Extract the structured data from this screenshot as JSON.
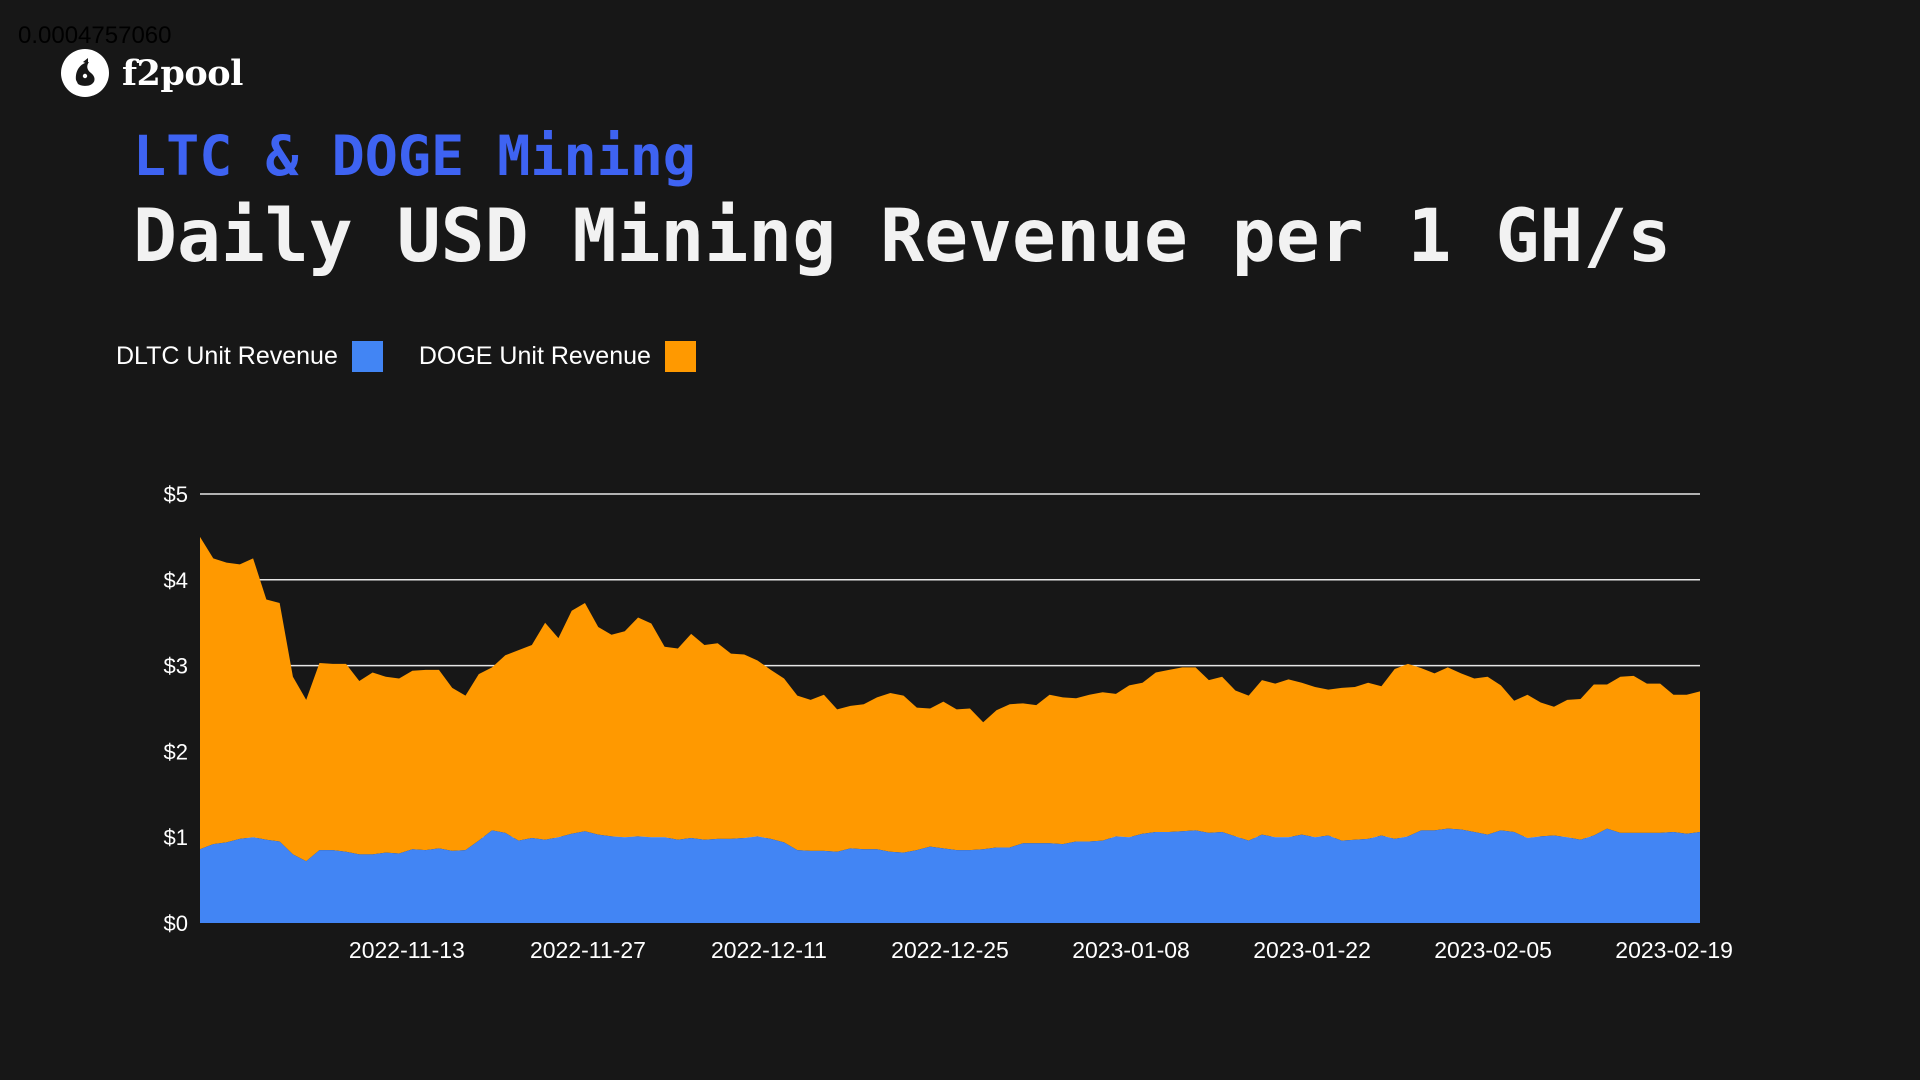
{
  "corner_value": "0.0004757060",
  "brand": {
    "name": "f2pool",
    "icon": "f2pool-fish-logo-icon"
  },
  "header": {
    "subtitle": "LTC & DOGE Mining",
    "title": "Daily USD Mining Revenue per 1 GH/s"
  },
  "colors": {
    "background": "#171717",
    "subtitle": "#3e63f2",
    "ltc": "#4285f4",
    "doge": "#ff9900",
    "grid": "#e6e6e6"
  },
  "chart_data": {
    "type": "area",
    "stacked": true,
    "x_start": "2022-10-28",
    "x_end": "2023-02-21",
    "x_ticks": [
      "2022-11-13",
      "2022-11-27",
      "2022-12-11",
      "2022-12-25",
      "2023-01-08",
      "2023-01-22",
      "2023-02-05",
      "2023-02-19"
    ],
    "y_ticks": [
      "$0",
      "$1",
      "$2",
      "$3",
      "$4",
      "$5"
    ],
    "ylim": [
      0,
      5
    ],
    "grid": "horizontal",
    "legend_position": "top-left",
    "series": [
      {
        "name": "DLTC Unit Revenue",
        "color": "#4285f4",
        "values": [
          0.86,
          0.92,
          0.94,
          0.98,
          1.0,
          0.97,
          0.95,
          0.8,
          0.72,
          0.85,
          0.85,
          0.83,
          0.8,
          0.8,
          0.82,
          0.81,
          0.86,
          0.85,
          0.87,
          0.84,
          0.85,
          0.96,
          1.08,
          1.05,
          0.96,
          0.99,
          0.97,
          1.0,
          1.04,
          1.07,
          1.03,
          1.01,
          1.0,
          1.01,
          1.0,
          1.0,
          0.97,
          0.99,
          0.97,
          0.98,
          0.98,
          0.99,
          1.01,
          0.98,
          0.94,
          0.85,
          0.84,
          0.84,
          0.83,
          0.87,
          0.86,
          0.86,
          0.83,
          0.82,
          0.85,
          0.89,
          0.87,
          0.85,
          0.85,
          0.86,
          0.88,
          0.88,
          0.93,
          0.93,
          0.93,
          0.92,
          0.95,
          0.95,
          0.96,
          1.01,
          1.0,
          1.04,
          1.06,
          1.06,
          1.07,
          1.08,
          1.05,
          1.06,
          1.01,
          0.96,
          1.03,
          1.0,
          1.0,
          1.03,
          1.0,
          1.02,
          0.96,
          0.97,
          0.98,
          1.02,
          0.98,
          1.01,
          1.08,
          1.08,
          1.1,
          1.09,
          1.06,
          1.03,
          1.08,
          1.06,
          0.99,
          1.01,
          1.02,
          1.0,
          0.97,
          1.02,
          1.1,
          1.05,
          1.05,
          1.05,
          1.05,
          1.06,
          1.04,
          1.06
        ]
      },
      {
        "name": "DOGE Unit Revenue",
        "color": "#ff9900",
        "values": [
          3.64,
          3.33,
          3.26,
          3.2,
          3.25,
          2.8,
          2.78,
          2.07,
          1.88,
          2.18,
          2.17,
          2.19,
          2.02,
          2.12,
          2.05,
          2.04,
          2.08,
          2.1,
          2.08,
          1.9,
          1.8,
          1.94,
          1.9,
          2.07,
          2.22,
          2.25,
          2.53,
          2.32,
          2.6,
          2.66,
          2.42,
          2.35,
          2.4,
          2.55,
          2.49,
          2.22,
          2.23,
          2.38,
          2.27,
          2.28,
          2.16,
          2.14,
          2.05,
          1.97,
          1.91,
          1.8,
          1.76,
          1.82,
          1.66,
          1.66,
          1.69,
          1.77,
          1.85,
          1.83,
          1.66,
          1.61,
          1.71,
          1.64,
          1.65,
          1.48,
          1.6,
          1.67,
          1.63,
          1.61,
          1.73,
          1.71,
          1.67,
          1.71,
          1.73,
          1.66,
          1.77,
          1.76,
          1.86,
          1.89,
          1.91,
          1.9,
          1.78,
          1.81,
          1.7,
          1.69,
          1.8,
          1.79,
          1.84,
          1.77,
          1.75,
          1.7,
          1.78,
          1.78,
          1.82,
          1.74,
          1.98,
          2.01,
          1.89,
          1.83,
          1.88,
          1.82,
          1.79,
          1.84,
          1.69,
          1.53,
          1.67,
          1.56,
          1.5,
          1.6,
          1.64,
          1.76,
          1.68,
          1.82,
          1.83,
          1.74,
          1.74,
          1.6,
          1.62,
          1.64
        ]
      }
    ]
  }
}
